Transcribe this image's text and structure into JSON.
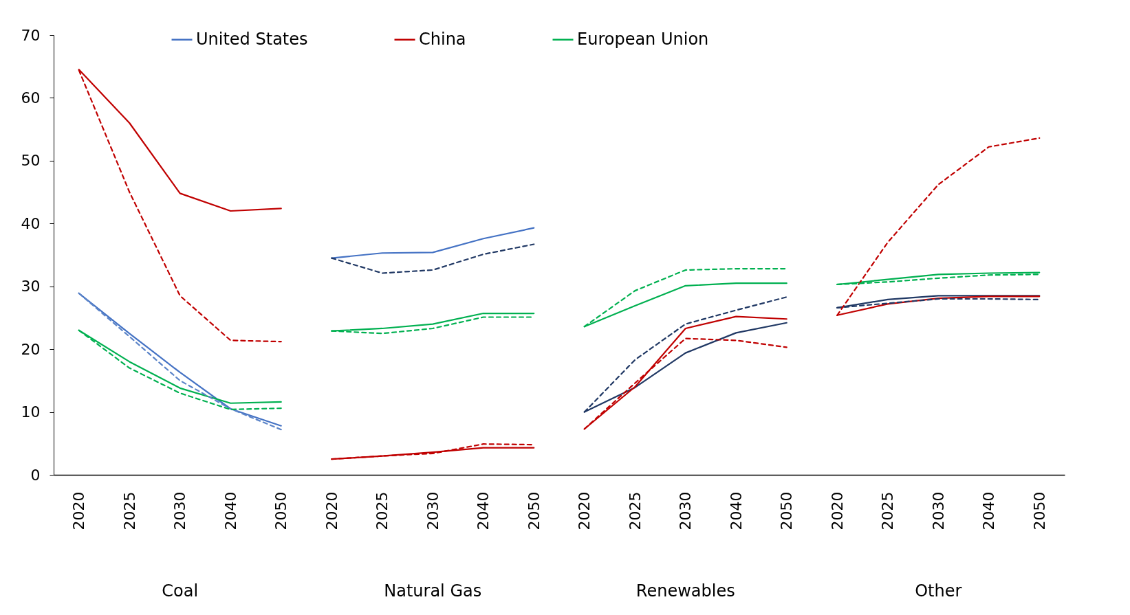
{
  "chart_data": {
    "type": "line",
    "categories": [
      "2020",
      "2025",
      "2030",
      "2040",
      "2050",
      "2020",
      "2025",
      "2030",
      "2040",
      "2050",
      "2020",
      "2025",
      "2030",
      "2040",
      "2050",
      "2020",
      "2025",
      "2030",
      "2040",
      "2050"
    ],
    "annotations": [
      "Coal",
      "Natural Gas",
      "Renewables",
      "Other"
    ],
    "ylim": [
      0,
      70
    ],
    "yticks": [
      0,
      10,
      20,
      30,
      40,
      50,
      60,
      70
    ],
    "grid": false,
    "legend": "top",
    "marker": "none",
    "series": [
      {
        "name": "United States",
        "color": "#4472c4",
        "line_style": "solid",
        "values": [
          28.9,
          22.5,
          16.3,
          10.5,
          7.8,
          null,
          null,
          null,
          null,
          null,
          null,
          null,
          null,
          null,
          null,
          null,
          null,
          null,
          null,
          null
        ]
      },
      {
        "name": "China",
        "color": "#c00000",
        "line_style": "solid",
        "values": [
          64.5,
          56,
          44.8,
          42,
          42.4,
          null,
          null,
          null,
          null,
          null,
          null,
          null,
          null,
          null,
          null,
          null,
          null,
          null,
          null,
          null
        ]
      },
      {
        "name": "European Union",
        "color": "#00b050",
        "line_style": "solid",
        "values": [
          23,
          18,
          13.8,
          11.4,
          11.6,
          null,
          null,
          null,
          null,
          null,
          null,
          null,
          null,
          null,
          null,
          null,
          null,
          null,
          null,
          null
        ]
      },
      {
        "color": "#5b84c8",
        "line_style": "dashed",
        "values": [
          28.9,
          22,
          15,
          10.5,
          7.2,
          null,
          null,
          null,
          null,
          null,
          null,
          null,
          null,
          null,
          null,
          null,
          null,
          null,
          null,
          null
        ]
      },
      {
        "color": "#c00000",
        "line_style": "dashed",
        "values": [
          64.4,
          45,
          28.5,
          21.4,
          21.2,
          null,
          null,
          null,
          null,
          null,
          null,
          null,
          null,
          null,
          null,
          null,
          null,
          null,
          null,
          null
        ]
      },
      {
        "color": "#00b050",
        "line_style": "dashed",
        "values": [
          23,
          17,
          13,
          10.4,
          10.6,
          null,
          null,
          null,
          null,
          null,
          null,
          null,
          null,
          null,
          null,
          null,
          null,
          null,
          null,
          null
        ]
      },
      {
        "color": "#4472c4",
        "line_style": "solid",
        "values": [
          null,
          null,
          null,
          null,
          null,
          34.5,
          35.3,
          35.4,
          37.6,
          39.3,
          null,
          null,
          null,
          null,
          null,
          null,
          null,
          null,
          null,
          null
        ]
      },
      {
        "color": "#c00000",
        "line_style": "solid",
        "values": [
          null,
          null,
          null,
          null,
          null,
          2.5,
          3,
          3.6,
          4.3,
          4.3,
          null,
          null,
          null,
          null,
          null,
          null,
          null,
          null,
          null,
          null
        ]
      },
      {
        "color": "#00b050",
        "line_style": "solid",
        "values": [
          null,
          null,
          null,
          null,
          null,
          22.9,
          23.3,
          24,
          25.7,
          25.7,
          null,
          null,
          null,
          null,
          null,
          null,
          null,
          null,
          null,
          null
        ]
      },
      {
        "color": "#203864",
        "line_style": "dashed",
        "values": [
          null,
          null,
          null,
          null,
          null,
          34.5,
          32.1,
          32.6,
          35.1,
          36.7,
          null,
          null,
          null,
          null,
          null,
          null,
          null,
          null,
          null,
          null
        ]
      },
      {
        "color": "#c00000",
        "line_style": "dashed",
        "values": [
          null,
          null,
          null,
          null,
          null,
          2.5,
          3,
          3.4,
          4.9,
          4.8,
          null,
          null,
          null,
          null,
          null,
          null,
          null,
          null,
          null,
          null
        ]
      },
      {
        "color": "#00b050",
        "line_style": "dashed",
        "values": [
          null,
          null,
          null,
          null,
          null,
          22.9,
          22.5,
          23.3,
          25.1,
          25.1,
          null,
          null,
          null,
          null,
          null,
          null,
          null,
          null,
          null,
          null
        ]
      },
      {
        "color": "#203864",
        "line_style": "solid",
        "values": [
          null,
          null,
          null,
          null,
          null,
          null,
          null,
          null,
          null,
          null,
          10,
          13.9,
          19.4,
          22.6,
          24.2,
          null,
          null,
          null,
          null,
          null
        ]
      },
      {
        "color": "#c00000",
        "line_style": "solid",
        "values": [
          null,
          null,
          null,
          null,
          null,
          null,
          null,
          null,
          null,
          null,
          7.3,
          14,
          23.3,
          25.2,
          24.8,
          null,
          null,
          null,
          null,
          null
        ]
      },
      {
        "color": "#00b050",
        "line_style": "solid",
        "values": [
          null,
          null,
          null,
          null,
          null,
          null,
          null,
          null,
          null,
          null,
          23.6,
          26.9,
          30.1,
          30.5,
          30.5,
          null,
          null,
          null,
          null,
          null
        ]
      },
      {
        "color": "#203864",
        "line_style": "dashed",
        "values": [
          null,
          null,
          null,
          null,
          null,
          null,
          null,
          null,
          null,
          null,
          10,
          18.3,
          24,
          26.2,
          28.3,
          null,
          null,
          null,
          null,
          null
        ]
      },
      {
        "color": "#c00000",
        "line_style": "dashed",
        "values": [
          null,
          null,
          null,
          null,
          null,
          null,
          null,
          null,
          null,
          null,
          7.3,
          14.6,
          21.7,
          21.4,
          20.3,
          null,
          null,
          null,
          null,
          null
        ]
      },
      {
        "color": "#00b050",
        "line_style": "dashed",
        "values": [
          null,
          null,
          null,
          null,
          null,
          null,
          null,
          null,
          null,
          null,
          23.6,
          29.3,
          32.6,
          32.8,
          32.8,
          null,
          null,
          null,
          null,
          null
        ]
      },
      {
        "color": "#203864",
        "line_style": "solid",
        "values": [
          null,
          null,
          null,
          null,
          null,
          null,
          null,
          null,
          null,
          null,
          null,
          null,
          null,
          null,
          null,
          26.6,
          27.9,
          28.5,
          28.5,
          28.5
        ]
      },
      {
        "color": "#c00000",
        "line_style": "solid",
        "values": [
          null,
          null,
          null,
          null,
          null,
          null,
          null,
          null,
          null,
          null,
          null,
          null,
          null,
          null,
          null,
          25.4,
          27.2,
          28.1,
          28.4,
          28.4
        ]
      },
      {
        "color": "#00b050",
        "line_style": "solid",
        "values": [
          null,
          null,
          null,
          null,
          null,
          null,
          null,
          null,
          null,
          null,
          null,
          null,
          null,
          null,
          null,
          30.3,
          31.1,
          31.9,
          32.1,
          32.2
        ]
      },
      {
        "color": "#203864",
        "line_style": "dashed",
        "values": [
          null,
          null,
          null,
          null,
          null,
          null,
          null,
          null,
          null,
          null,
          null,
          null,
          null,
          null,
          null,
          26.6,
          27.3,
          28,
          28,
          27.9
        ]
      },
      {
        "color": "#c00000",
        "line_style": "dashed",
        "values": [
          null,
          null,
          null,
          null,
          null,
          null,
          null,
          null,
          null,
          null,
          null,
          null,
          null,
          null,
          null,
          25.4,
          37,
          46.2,
          52.2,
          53.6
        ]
      },
      {
        "color": "#00b050",
        "line_style": "dashed",
        "values": [
          null,
          null,
          null,
          null,
          null,
          null,
          null,
          null,
          null,
          null,
          null,
          null,
          null,
          null,
          null,
          30.3,
          30.7,
          31.3,
          31.8,
          31.9
        ]
      }
    ]
  }
}
